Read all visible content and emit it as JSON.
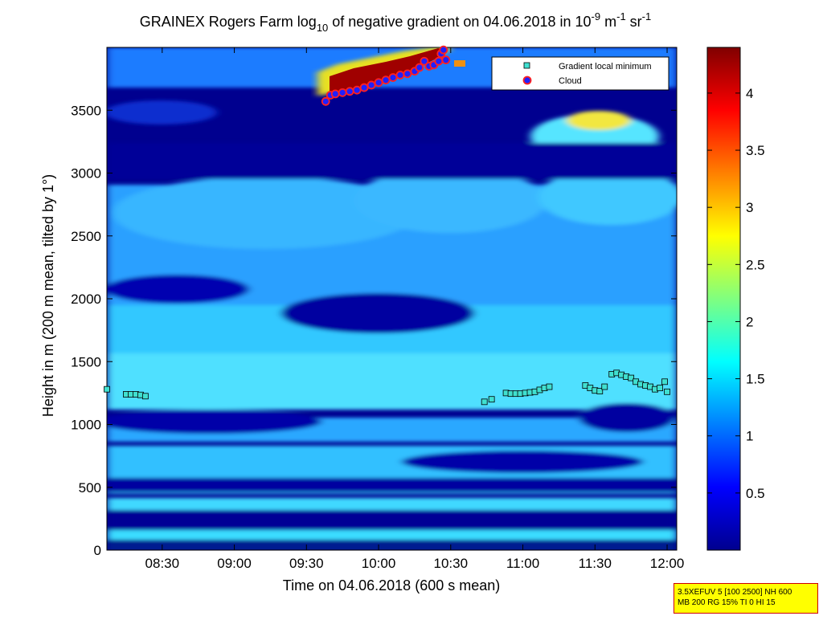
{
  "chart_data": {
    "type": "heatmap",
    "title": "GRAINEX Rogers Farm log",
    "title_sub": "10",
    "title_mid": " of negative gradient on 04.06.2018 in 10",
    "title_exp1": "-9",
    "title_mid2": " m",
    "title_exp2": "-1",
    "title_mid3": " sr",
    "title_exp3": "-1",
    "xlabel": "Time on 04.06.2018 (600 s mean)",
    "ylabel": "Height in m (200 m mean, tilted by 1°)",
    "x_ticks": [
      "08:30",
      "09:00",
      "09:30",
      "10:00",
      "10:30",
      "11:00",
      "11:30",
      "12:00"
    ],
    "y_ticks": [
      "0",
      "500",
      "1000",
      "1500",
      "2000",
      "2500",
      "3000",
      "3500"
    ],
    "xlim": [
      "08:07",
      "12:04"
    ],
    "ylim": [
      0,
      4000
    ],
    "colorbar": {
      "ticks": [
        "0.5",
        "1",
        "1.5",
        "2",
        "2.5",
        "3",
        "3.5",
        "4"
      ],
      "range": [
        0,
        4.4
      ],
      "colormap": "jet"
    },
    "legend": {
      "placement": "top-right",
      "entries": [
        {
          "label": "Gradient local minimum",
          "marker": "square",
          "color": "#40e0d0"
        },
        {
          "label": "Cloud",
          "marker": "circle",
          "color": "#ff2020"
        }
      ]
    },
    "series": [
      {
        "name": "Gradient local minimum",
        "points": [
          [
            "08:07",
            1280
          ],
          [
            "08:15",
            1240
          ],
          [
            "08:17",
            1240
          ],
          [
            "08:19",
            1240
          ],
          [
            "08:21",
            1235
          ],
          [
            "08:23",
            1225
          ],
          [
            "10:44",
            1180
          ],
          [
            "10:47",
            1200
          ],
          [
            "10:53",
            1250
          ],
          [
            "10:55",
            1245
          ],
          [
            "10:57",
            1245
          ],
          [
            "10:59",
            1245
          ],
          [
            "11:01",
            1250
          ],
          [
            "11:03",
            1255
          ],
          [
            "11:05",
            1260
          ],
          [
            "11:07",
            1275
          ],
          [
            "11:09",
            1290
          ],
          [
            "11:11",
            1300
          ],
          [
            "11:26",
            1310
          ],
          [
            "11:28",
            1290
          ],
          [
            "11:30",
            1270
          ],
          [
            "11:32",
            1265
          ],
          [
            "11:34",
            1300
          ],
          [
            "11:37",
            1400
          ],
          [
            "11:39",
            1410
          ],
          [
            "11:41",
            1395
          ],
          [
            "11:43",
            1380
          ],
          [
            "11:45",
            1370
          ],
          [
            "11:47",
            1340
          ],
          [
            "11:49",
            1320
          ],
          [
            "11:51",
            1310
          ],
          [
            "11:53",
            1300
          ],
          [
            "11:55",
            1280
          ],
          [
            "11:57",
            1290
          ],
          [
            "11:59",
            1340
          ],
          [
            "12:00",
            1260
          ]
        ]
      },
      {
        "name": "Cloud",
        "points": [
          [
            "09:38",
            3570
          ],
          [
            "09:40",
            3620
          ],
          [
            "09:42",
            3630
          ],
          [
            "09:45",
            3640
          ],
          [
            "09:48",
            3650
          ],
          [
            "09:51",
            3660
          ],
          [
            "09:54",
            3680
          ],
          [
            "09:57",
            3700
          ],
          [
            "10:00",
            3720
          ],
          [
            "10:03",
            3740
          ],
          [
            "10:06",
            3760
          ],
          [
            "10:09",
            3780
          ],
          [
            "10:12",
            3790
          ],
          [
            "10:15",
            3810
          ],
          [
            "10:17",
            3840
          ],
          [
            "10:19",
            3890
          ],
          [
            "10:21",
            3850
          ],
          [
            "10:23",
            3860
          ],
          [
            "10:25",
            3890
          ],
          [
            "10:26",
            3950
          ],
          [
            "10:27",
            3980
          ],
          [
            "10:28",
            3900
          ]
        ]
      }
    ]
  },
  "info_box": {
    "line1": "3.5XEFUV 5 [100 2500] NH 600",
    "line2": "MB 200 RG 15% TI 0 HI 15"
  }
}
